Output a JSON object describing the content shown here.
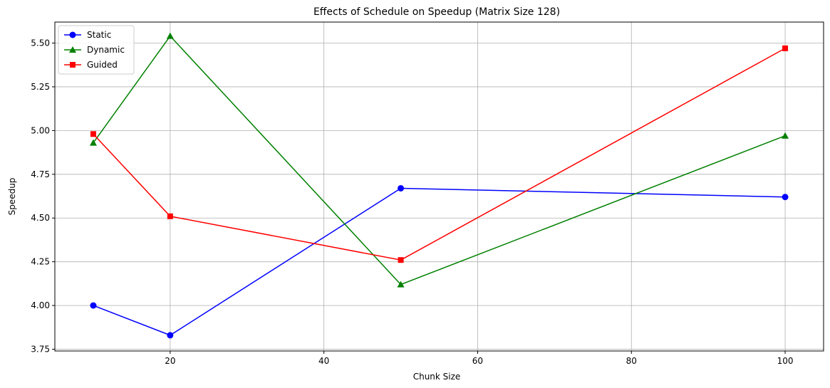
{
  "chart_data": {
    "type": "line",
    "title": "Effects of Schedule on Speedup (Matrix Size 128)",
    "xlabel": "Chunk Size",
    "ylabel": "Speedup",
    "x": [
      10,
      20,
      50,
      100
    ],
    "xlim": [
      5,
      105
    ],
    "ylim": [
      3.74,
      5.62
    ],
    "xticks": [
      20,
      40,
      60,
      80,
      100
    ],
    "yticks": [
      3.75,
      4.0,
      4.25,
      4.5,
      4.75,
      5.0,
      5.25,
      5.5
    ],
    "xtick_labels": [
      "20",
      "40",
      "60",
      "80",
      "100"
    ],
    "ytick_labels": [
      "3.75",
      "4.00",
      "4.25",
      "4.50",
      "4.75",
      "5.00",
      "5.25",
      "5.50"
    ],
    "grid": true,
    "legend_position": "top-left",
    "series": [
      {
        "name": "Static",
        "values": [
          4.0,
          3.83,
          4.67,
          4.62
        ],
        "color": "#0000ff",
        "marker": "circle"
      },
      {
        "name": "Dynamic",
        "values": [
          4.93,
          5.54,
          4.12,
          4.97
        ],
        "color": "#008000",
        "marker": "triangle"
      },
      {
        "name": "Guided",
        "values": [
          4.98,
          4.51,
          4.26,
          5.47
        ],
        "color": "#ff0000",
        "marker": "square"
      }
    ]
  }
}
